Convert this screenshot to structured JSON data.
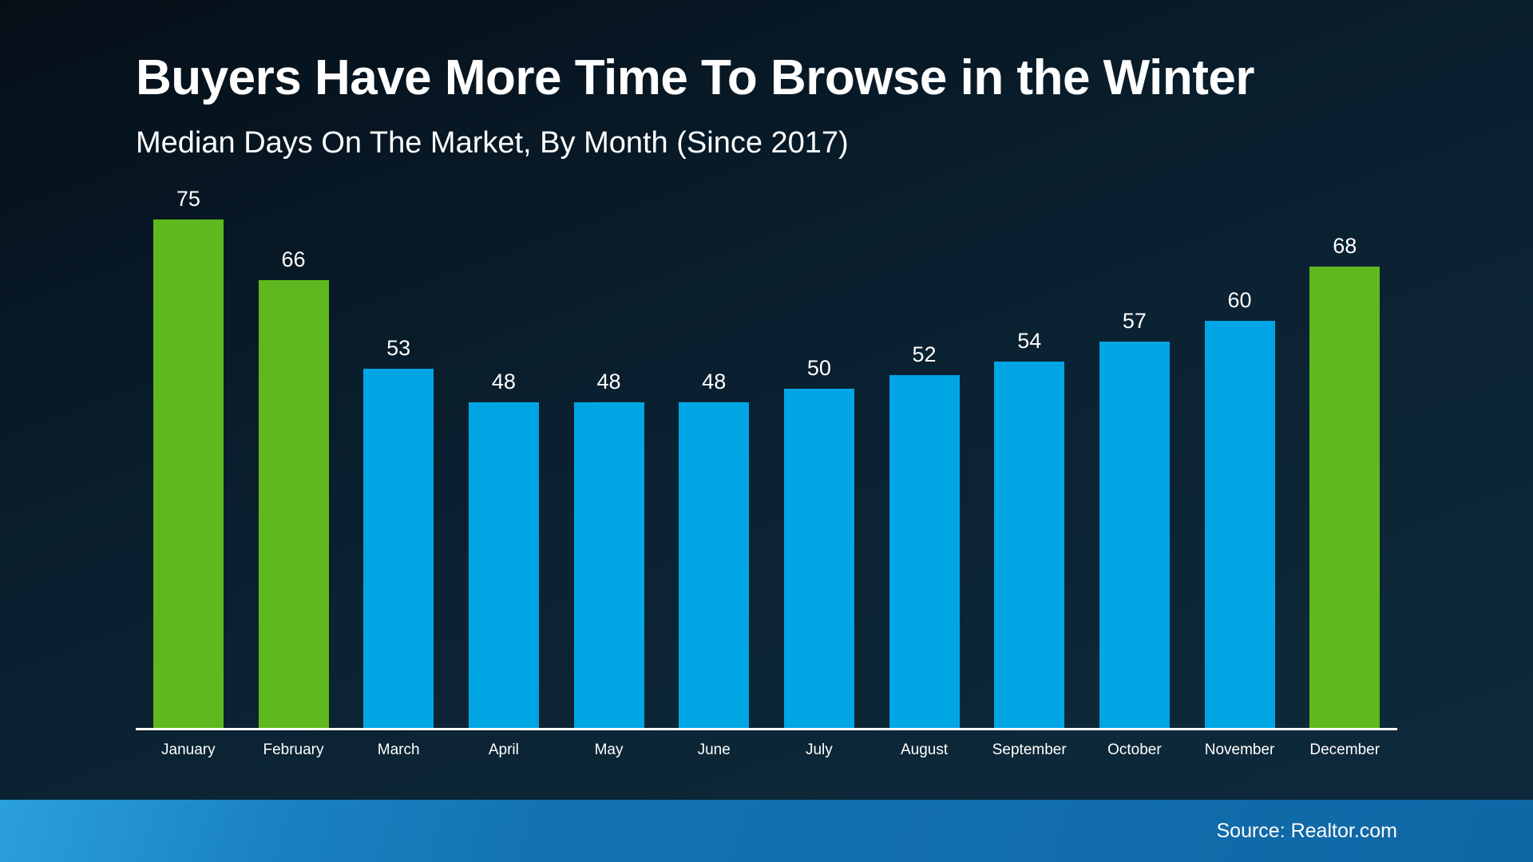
{
  "title": "Buyers Have More Time To Browse in the Winter",
  "subtitle": "Median Days On The Market, By Month (Since 2017)",
  "source": "Source: Realtor.com",
  "colors": {
    "winter_bar": "#5fb91e",
    "regular_bar": "#00a6e4",
    "background_dark": "#0a2030",
    "footer_blue": "#1373b2",
    "axis": "#ffffff",
    "text": "#ffffff"
  },
  "chart_data": {
    "type": "bar",
    "title": "Buyers Have More Time To Browse in the Winter",
    "subtitle": "Median Days On The Market, By Month (Since 2017)",
    "xlabel": "",
    "ylabel": "Median Days On The Market",
    "unit": "days",
    "ylim": [
      0,
      80
    ],
    "grid": false,
    "legend": "none",
    "value_labels": true,
    "categories": [
      "January",
      "February",
      "March",
      "April",
      "May",
      "June",
      "July",
      "August",
      "September",
      "October",
      "November",
      "December"
    ],
    "values": [
      75,
      66,
      53,
      48,
      48,
      48,
      50,
      52,
      54,
      57,
      60,
      68
    ],
    "winter_months": [
      "January",
      "February",
      "December"
    ],
    "bar_colors": [
      "#5fb91e",
      "#5fb91e",
      "#00a6e4",
      "#00a6e4",
      "#00a6e4",
      "#00a6e4",
      "#00a6e4",
      "#00a6e4",
      "#00a6e4",
      "#00a6e4",
      "#00a6e4",
      "#5fb91e"
    ],
    "source": "Source: Realtor.com"
  }
}
